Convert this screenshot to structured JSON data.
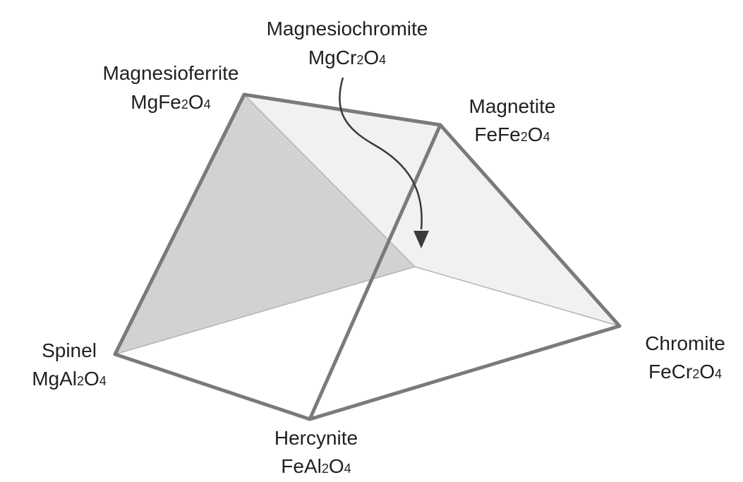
{
  "vertices": [
    {
      "id": "magnesiochromite",
      "name": "Magnesiochromite",
      "formula": [
        "MgCr",
        "2",
        "O",
        "4"
      ]
    },
    {
      "id": "magnesioferrite",
      "name": "Magnesioferrite",
      "formula": [
        "MgFe",
        "2",
        "O",
        "4"
      ]
    },
    {
      "id": "magnetite",
      "name": "Magnetite",
      "formula": [
        "FeFe",
        "2",
        "O",
        "4"
      ]
    },
    {
      "id": "spinel",
      "name": "Spinel",
      "formula": [
        "MgAl",
        "2",
        "O",
        "4"
      ]
    },
    {
      "id": "chromite",
      "name": "Chromite",
      "formula": [
        "FeCr",
        "2",
        "O",
        "4"
      ]
    },
    {
      "id": "hercynite",
      "name": "Hercynite",
      "formula": [
        "FeAl",
        "2",
        "O",
        "4"
      ]
    }
  ],
  "colors": {
    "edge": "#7a7a7a",
    "shaded_face": "#d2d2d2",
    "back_face": "#f1f1f1",
    "text": "#231f20",
    "arrow": "#3a3a3a"
  }
}
